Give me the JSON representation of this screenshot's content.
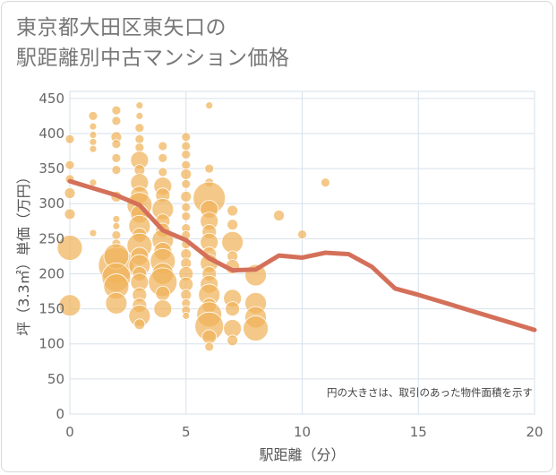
{
  "title_line1": "東京都大田区東矢口の",
  "title_line2": "駅距離別中古マンション価格",
  "chart_data": {
    "type": "scatter",
    "xlabel": "駅距離（分）",
    "ylabel": "坪（3.3㎡）単価（万円）",
    "xlim": [
      0,
      20
    ],
    "ylim": [
      0,
      460
    ],
    "x_ticks": [
      "0",
      "5",
      "10",
      "15",
      "20"
    ],
    "y_ticks": [
      "0",
      "50",
      "100",
      "150",
      "200",
      "250",
      "300",
      "350",
      "400",
      "450"
    ],
    "note": "円の大きさは、取引のあった物件面積を示す",
    "grid": true,
    "colors": {
      "bubble": "#f0b35a",
      "line": "#d4705a",
      "grid": "#d6e0ea",
      "plot_bg": "#ffffff"
    },
    "trend_line": {
      "x": [
        0,
        1,
        2,
        3,
        4,
        5,
        6,
        7,
        8,
        9,
        10,
        11,
        12,
        13,
        14,
        15,
        16,
        17,
        18,
        19,
        20
      ],
      "y": [
        332,
        322,
        312,
        298,
        262,
        248,
        222,
        205,
        206,
        226,
        223,
        230,
        228,
        210,
        179,
        170,
        160,
        150,
        140,
        130,
        120
      ]
    },
    "bubbles": [
      {
        "x": 0,
        "y": 155,
        "r": 12
      },
      {
        "x": 0,
        "y": 237,
        "r": 14
      },
      {
        "x": 0,
        "y": 285,
        "r": 6
      },
      {
        "x": 0,
        "y": 315,
        "r": 6
      },
      {
        "x": 0,
        "y": 335,
        "r": 5
      },
      {
        "x": 0,
        "y": 355,
        "r": 5
      },
      {
        "x": 0,
        "y": 392,
        "r": 5
      },
      {
        "x": 1,
        "y": 425,
        "r": 5
      },
      {
        "x": 1,
        "y": 410,
        "r": 4
      },
      {
        "x": 1,
        "y": 398,
        "r": 4
      },
      {
        "x": 1,
        "y": 388,
        "r": 4
      },
      {
        "x": 1,
        "y": 378,
        "r": 4
      },
      {
        "x": 1,
        "y": 330,
        "r": 4
      },
      {
        "x": 1,
        "y": 258,
        "r": 4
      },
      {
        "x": 2,
        "y": 433,
        "r": 5
      },
      {
        "x": 2,
        "y": 418,
        "r": 5
      },
      {
        "x": 2,
        "y": 395,
        "r": 6
      },
      {
        "x": 2,
        "y": 385,
        "r": 5
      },
      {
        "x": 2,
        "y": 365,
        "r": 5
      },
      {
        "x": 2,
        "y": 348,
        "r": 5
      },
      {
        "x": 2,
        "y": 310,
        "r": 6
      },
      {
        "x": 2,
        "y": 278,
        "r": 4
      },
      {
        "x": 2,
        "y": 268,
        "r": 4
      },
      {
        "x": 2,
        "y": 255,
        "r": 5
      },
      {
        "x": 2,
        "y": 243,
        "r": 5
      },
      {
        "x": 2,
        "y": 212,
        "r": 20
      },
      {
        "x": 2,
        "y": 225,
        "r": 14
      },
      {
        "x": 2,
        "y": 195,
        "r": 16
      },
      {
        "x": 2,
        "y": 182,
        "r": 14
      },
      {
        "x": 2,
        "y": 158,
        "r": 12
      },
      {
        "x": 3,
        "y": 440,
        "r": 4
      },
      {
        "x": 3,
        "y": 425,
        "r": 4
      },
      {
        "x": 3,
        "y": 408,
        "r": 5
      },
      {
        "x": 3,
        "y": 392,
        "r": 5
      },
      {
        "x": 3,
        "y": 380,
        "r": 5
      },
      {
        "x": 3,
        "y": 362,
        "r": 10
      },
      {
        "x": 3,
        "y": 348,
        "r": 6
      },
      {
        "x": 3,
        "y": 330,
        "r": 10
      },
      {
        "x": 3,
        "y": 312,
        "r": 10
      },
      {
        "x": 3,
        "y": 298,
        "r": 14
      },
      {
        "x": 3,
        "y": 285,
        "r": 10
      },
      {
        "x": 3,
        "y": 268,
        "r": 12
      },
      {
        "x": 3,
        "y": 255,
        "r": 8
      },
      {
        "x": 3,
        "y": 240,
        "r": 14
      },
      {
        "x": 3,
        "y": 225,
        "r": 10
      },
      {
        "x": 3,
        "y": 212,
        "r": 12
      },
      {
        "x": 3,
        "y": 200,
        "r": 8
      },
      {
        "x": 3,
        "y": 188,
        "r": 10
      },
      {
        "x": 3,
        "y": 170,
        "r": 8
      },
      {
        "x": 3,
        "y": 155,
        "r": 8
      },
      {
        "x": 3,
        "y": 140,
        "r": 12
      },
      {
        "x": 3,
        "y": 128,
        "r": 6
      },
      {
        "x": 4,
        "y": 382,
        "r": 5
      },
      {
        "x": 4,
        "y": 365,
        "r": 5
      },
      {
        "x": 4,
        "y": 345,
        "r": 5
      },
      {
        "x": 4,
        "y": 325,
        "r": 10
      },
      {
        "x": 4,
        "y": 312,
        "r": 8
      },
      {
        "x": 4,
        "y": 292,
        "r": 12
      },
      {
        "x": 4,
        "y": 275,
        "r": 8
      },
      {
        "x": 4,
        "y": 262,
        "r": 8
      },
      {
        "x": 4,
        "y": 248,
        "r": 12
      },
      {
        "x": 4,
        "y": 232,
        "r": 10
      },
      {
        "x": 4,
        "y": 218,
        "r": 14
      },
      {
        "x": 4,
        "y": 200,
        "r": 12
      },
      {
        "x": 4,
        "y": 188,
        "r": 16
      },
      {
        "x": 4,
        "y": 172,
        "r": 8
      },
      {
        "x": 4,
        "y": 150,
        "r": 10
      },
      {
        "x": 5,
        "y": 395,
        "r": 5
      },
      {
        "x": 5,
        "y": 382,
        "r": 5
      },
      {
        "x": 5,
        "y": 370,
        "r": 5
      },
      {
        "x": 5,
        "y": 355,
        "r": 5
      },
      {
        "x": 5,
        "y": 342,
        "r": 6
      },
      {
        "x": 5,
        "y": 328,
        "r": 5
      },
      {
        "x": 5,
        "y": 310,
        "r": 6
      },
      {
        "x": 5,
        "y": 295,
        "r": 5
      },
      {
        "x": 5,
        "y": 282,
        "r": 5
      },
      {
        "x": 5,
        "y": 265,
        "r": 5
      },
      {
        "x": 5,
        "y": 255,
        "r": 5
      },
      {
        "x": 5,
        "y": 242,
        "r": 5
      },
      {
        "x": 5,
        "y": 228,
        "r": 6
      },
      {
        "x": 5,
        "y": 215,
        "r": 6
      },
      {
        "x": 5,
        "y": 200,
        "r": 8
      },
      {
        "x": 5,
        "y": 185,
        "r": 8
      },
      {
        "x": 5,
        "y": 170,
        "r": 6
      },
      {
        "x": 5,
        "y": 158,
        "r": 5
      },
      {
        "x": 5,
        "y": 148,
        "r": 5
      },
      {
        "x": 5,
        "y": 140,
        "r": 4
      },
      {
        "x": 6,
        "y": 440,
        "r": 4
      },
      {
        "x": 6,
        "y": 350,
        "r": 5
      },
      {
        "x": 6,
        "y": 330,
        "r": 5
      },
      {
        "x": 6,
        "y": 308,
        "r": 18
      },
      {
        "x": 6,
        "y": 292,
        "r": 10
      },
      {
        "x": 6,
        "y": 275,
        "r": 10
      },
      {
        "x": 6,
        "y": 260,
        "r": 8
      },
      {
        "x": 6,
        "y": 245,
        "r": 10
      },
      {
        "x": 6,
        "y": 228,
        "r": 8
      },
      {
        "x": 6,
        "y": 215,
        "r": 10
      },
      {
        "x": 6,
        "y": 200,
        "r": 8
      },
      {
        "x": 6,
        "y": 185,
        "r": 10
      },
      {
        "x": 6,
        "y": 170,
        "r": 12
      },
      {
        "x": 6,
        "y": 155,
        "r": 8
      },
      {
        "x": 6,
        "y": 142,
        "r": 14
      },
      {
        "x": 6,
        "y": 125,
        "r": 16
      },
      {
        "x": 6,
        "y": 110,
        "r": 8
      },
      {
        "x": 6,
        "y": 96,
        "r": 5
      },
      {
        "x": 7,
        "y": 290,
        "r": 6
      },
      {
        "x": 7,
        "y": 270,
        "r": 6
      },
      {
        "x": 7,
        "y": 245,
        "r": 12
      },
      {
        "x": 7,
        "y": 225,
        "r": 6
      },
      {
        "x": 7,
        "y": 210,
        "r": 8
      },
      {
        "x": 7,
        "y": 165,
        "r": 10
      },
      {
        "x": 7,
        "y": 150,
        "r": 8
      },
      {
        "x": 7,
        "y": 122,
        "r": 10
      },
      {
        "x": 7,
        "y": 105,
        "r": 6
      },
      {
        "x": 8,
        "y": 198,
        "r": 12
      },
      {
        "x": 8,
        "y": 158,
        "r": 12
      },
      {
        "x": 8,
        "y": 138,
        "r": 12
      },
      {
        "x": 8,
        "y": 122,
        "r": 14
      },
      {
        "x": 9,
        "y": 283,
        "r": 6
      },
      {
        "x": 10,
        "y": 256,
        "r": 5
      },
      {
        "x": 11,
        "y": 330,
        "r": 5
      }
    ]
  }
}
